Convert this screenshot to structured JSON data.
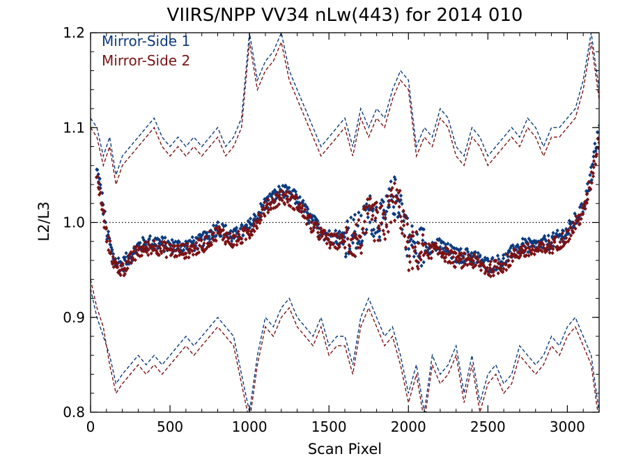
{
  "chart_data": {
    "type": "scatter",
    "title": "VIIRS/NPP VV34 nLw(443) for 2014 010",
    "xlabel": "Scan Pixel",
    "ylabel": "L2/L3",
    "xlim": [
      0,
      3200
    ],
    "ylim": [
      0.8,
      1.2
    ],
    "xticks": [
      0,
      500,
      1000,
      1500,
      2000,
      2500,
      3000
    ],
    "yticks": [
      0.8,
      0.9,
      1.0,
      1.1,
      1.2
    ],
    "xtick_labels": [
      "0",
      "500",
      "1000",
      "1500",
      "2000",
      "2500",
      "3000"
    ],
    "ytick_labels": [
      "0.8",
      "0.9",
      "1.0",
      "1.1",
      "1.2"
    ],
    "reference_line": 1.0,
    "legend_position": "top-left",
    "grid": false,
    "series": [
      {
        "name": "Mirror-Side 1",
        "color": "#0b3a7e",
        "mean_x": [
          0,
          30,
          60,
          100,
          150,
          200,
          300,
          400,
          500,
          600,
          700,
          800,
          900,
          1000,
          1100,
          1200,
          1300,
          1400,
          1500,
          1600,
          1700,
          1750,
          1800,
          1850,
          1900,
          1950,
          2000,
          2050,
          2100,
          2200,
          2300,
          2400,
          2500,
          2600,
          2700,
          2800,
          2900,
          3000,
          3100,
          3150,
          3200
        ],
        "mean_y": [
          1.1,
          1.06,
          1.04,
          0.99,
          0.96,
          0.955,
          0.975,
          0.98,
          0.975,
          0.975,
          0.98,
          0.995,
          0.985,
          0.995,
          1.02,
          1.033,
          1.025,
          1.0,
          0.985,
          0.985,
          0.99,
          1.01,
          1.005,
          1.0,
          1.03,
          1.02,
          0.98,
          0.975,
          0.975,
          0.975,
          0.965,
          0.965,
          0.955,
          0.96,
          0.975,
          0.975,
          0.98,
          0.99,
          1.015,
          1.05,
          1.1
        ],
        "upper_x": [
          0,
          40,
          80,
          120,
          160,
          200,
          250,
          300,
          350,
          400,
          450,
          500,
          550,
          600,
          650,
          700,
          750,
          800,
          850,
          900,
          950,
          1000,
          1050,
          1100,
          1150,
          1200,
          1250,
          1300,
          1350,
          1400,
          1450,
          1500,
          1550,
          1600,
          1650,
          1700,
          1750,
          1800,
          1850,
          1900,
          1950,
          2000,
          2050,
          2100,
          2150,
          2200,
          2250,
          2300,
          2350,
          2400,
          2450,
          2500,
          2550,
          2600,
          2650,
          2700,
          2750,
          2800,
          2850,
          2900,
          2950,
          3000,
          3050,
          3100,
          3150,
          3200
        ],
        "upper_y": [
          1.11,
          1.1,
          1.07,
          1.09,
          1.05,
          1.07,
          1.08,
          1.09,
          1.1,
          1.11,
          1.09,
          1.08,
          1.09,
          1.08,
          1.09,
          1.08,
          1.09,
          1.1,
          1.08,
          1.09,
          1.11,
          1.2,
          1.15,
          1.17,
          1.18,
          1.2,
          1.16,
          1.14,
          1.12,
          1.1,
          1.08,
          1.09,
          1.1,
          1.11,
          1.08,
          1.12,
          1.1,
          1.12,
          1.11,
          1.14,
          1.16,
          1.15,
          1.08,
          1.1,
          1.09,
          1.12,
          1.11,
          1.08,
          1.07,
          1.1,
          1.09,
          1.07,
          1.08,
          1.09,
          1.1,
          1.09,
          1.11,
          1.1,
          1.08,
          1.1,
          1.1,
          1.11,
          1.12,
          1.15,
          1.2,
          1.14
        ],
        "lower_x": [
          0,
          40,
          80,
          120,
          160,
          200,
          250,
          300,
          350,
          400,
          450,
          500,
          550,
          600,
          650,
          700,
          750,
          800,
          850,
          900,
          950,
          1000,
          1050,
          1100,
          1150,
          1200,
          1250,
          1300,
          1350,
          1400,
          1450,
          1500,
          1550,
          1600,
          1650,
          1700,
          1750,
          1800,
          1850,
          1900,
          1950,
          2000,
          2050,
          2100,
          2150,
          2200,
          2250,
          2300,
          2350,
          2400,
          2450,
          2500,
          2550,
          2600,
          2650,
          2700,
          2750,
          2800,
          2850,
          2900,
          2950,
          3000,
          3050,
          3100,
          3150,
          3200
        ],
        "lower_y": [
          0.93,
          0.9,
          0.88,
          0.86,
          0.83,
          0.84,
          0.85,
          0.86,
          0.85,
          0.86,
          0.85,
          0.86,
          0.87,
          0.88,
          0.87,
          0.88,
          0.89,
          0.9,
          0.89,
          0.88,
          0.84,
          0.8,
          0.86,
          0.9,
          0.89,
          0.91,
          0.92,
          0.9,
          0.89,
          0.88,
          0.9,
          0.87,
          0.88,
          0.88,
          0.85,
          0.9,
          0.92,
          0.9,
          0.88,
          0.89,
          0.86,
          0.82,
          0.85,
          0.8,
          0.86,
          0.84,
          0.85,
          0.87,
          0.82,
          0.86,
          0.81,
          0.84,
          0.85,
          0.83,
          0.84,
          0.87,
          0.86,
          0.85,
          0.86,
          0.88,
          0.87,
          0.89,
          0.9,
          0.88,
          0.86,
          0.8
        ]
      },
      {
        "name": "Mirror-Side 2",
        "color": "#7b1215",
        "mean_x": [
          0,
          30,
          60,
          100,
          150,
          200,
          300,
          400,
          500,
          600,
          700,
          800,
          900,
          1000,
          1100,
          1200,
          1300,
          1400,
          1500,
          1600,
          1700,
          1750,
          1800,
          1850,
          1900,
          1950,
          2000,
          2050,
          2100,
          2200,
          2300,
          2400,
          2500,
          2600,
          2700,
          2800,
          2900,
          3000,
          3100,
          3150,
          3200
        ],
        "mean_y": [
          1.09,
          1.05,
          1.03,
          0.985,
          0.955,
          0.95,
          0.97,
          0.975,
          0.97,
          0.97,
          0.975,
          0.99,
          0.98,
          0.99,
          1.015,
          1.028,
          1.02,
          0.995,
          0.98,
          0.98,
          0.985,
          1.005,
          1.0,
          0.995,
          1.025,
          1.015,
          0.97,
          0.97,
          0.97,
          0.97,
          0.96,
          0.96,
          0.95,
          0.955,
          0.97,
          0.97,
          0.975,
          0.985,
          1.01,
          1.045,
          1.09
        ],
        "upper_x": [
          0,
          40,
          80,
          120,
          160,
          200,
          250,
          300,
          350,
          400,
          450,
          500,
          550,
          600,
          650,
          700,
          750,
          800,
          850,
          900,
          950,
          1000,
          1050,
          1100,
          1150,
          1200,
          1250,
          1300,
          1350,
          1400,
          1450,
          1500,
          1550,
          1600,
          1650,
          1700,
          1750,
          1800,
          1850,
          1900,
          1950,
          2000,
          2050,
          2100,
          2150,
          2200,
          2250,
          2300,
          2350,
          2400,
          2450,
          2500,
          2550,
          2600,
          2650,
          2700,
          2750,
          2800,
          2850,
          2900,
          2950,
          3000,
          3050,
          3100,
          3150,
          3200
        ],
        "upper_y": [
          1.1,
          1.09,
          1.06,
          1.08,
          1.04,
          1.06,
          1.07,
          1.08,
          1.09,
          1.1,
          1.08,
          1.07,
          1.08,
          1.07,
          1.08,
          1.07,
          1.08,
          1.09,
          1.07,
          1.08,
          1.1,
          1.19,
          1.14,
          1.16,
          1.17,
          1.19,
          1.15,
          1.13,
          1.11,
          1.09,
          1.07,
          1.08,
          1.09,
          1.1,
          1.07,
          1.11,
          1.09,
          1.11,
          1.1,
          1.13,
          1.15,
          1.14,
          1.07,
          1.09,
          1.08,
          1.11,
          1.1,
          1.07,
          1.06,
          1.09,
          1.08,
          1.06,
          1.07,
          1.08,
          1.09,
          1.08,
          1.1,
          1.09,
          1.07,
          1.09,
          1.09,
          1.1,
          1.11,
          1.14,
          1.19,
          1.13
        ],
        "lower_x": [
          0,
          40,
          80,
          120,
          160,
          200,
          250,
          300,
          350,
          400,
          450,
          500,
          550,
          600,
          650,
          700,
          750,
          800,
          850,
          900,
          950,
          1000,
          1050,
          1100,
          1150,
          1200,
          1250,
          1300,
          1350,
          1400,
          1450,
          1500,
          1550,
          1600,
          1650,
          1700,
          1750,
          1800,
          1850,
          1900,
          1950,
          2000,
          2050,
          2100,
          2150,
          2200,
          2250,
          2300,
          2350,
          2400,
          2450,
          2500,
          2550,
          2600,
          2650,
          2700,
          2750,
          2800,
          2850,
          2900,
          2950,
          3000,
          3050,
          3100,
          3150,
          3200
        ],
        "lower_y": [
          0.94,
          0.91,
          0.89,
          0.85,
          0.82,
          0.83,
          0.84,
          0.85,
          0.84,
          0.85,
          0.84,
          0.85,
          0.86,
          0.87,
          0.86,
          0.87,
          0.88,
          0.89,
          0.88,
          0.87,
          0.83,
          0.79,
          0.85,
          0.89,
          0.88,
          0.9,
          0.91,
          0.89,
          0.88,
          0.87,
          0.89,
          0.86,
          0.87,
          0.87,
          0.84,
          0.89,
          0.91,
          0.89,
          0.87,
          0.88,
          0.85,
          0.81,
          0.84,
          0.79,
          0.85,
          0.83,
          0.84,
          0.86,
          0.81,
          0.85,
          0.8,
          0.83,
          0.84,
          0.82,
          0.83,
          0.86,
          0.85,
          0.84,
          0.85,
          0.87,
          0.86,
          0.88,
          0.89,
          0.87,
          0.85,
          0.79
        ]
      }
    ]
  }
}
